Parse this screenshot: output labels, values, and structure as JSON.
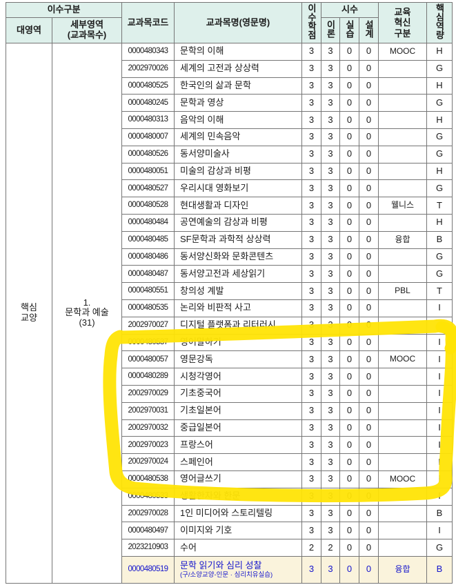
{
  "header": {
    "group": "이수구분",
    "main_area": "대영역",
    "sub_area": "세부영역\n(교과목수)",
    "code": "교과목코드",
    "name": "교과목명(영문명)",
    "credits": "이수학점",
    "hours": "시수",
    "theory": "이론",
    "practice": "실습",
    "design": "설계",
    "innovation": "교육혁신구분",
    "competency": "핵심역량"
  },
  "left": {
    "main_area": "핵심\n교양",
    "sub_area": "1.\n문학과 예술\n(31)"
  },
  "rows": [
    {
      "code": "0000480343",
      "name": "문학의 이해",
      "credit": 3,
      "theory": 3,
      "practice": 0,
      "design": 0,
      "innovation": "MOOC",
      "competency": "H"
    },
    {
      "code": "2002970026",
      "name": "세계의 고전과 상상력",
      "credit": 3,
      "theory": 3,
      "practice": 0,
      "design": 0,
      "innovation": "",
      "competency": "G"
    },
    {
      "code": "0000480525",
      "name": "한국인의 삶과 문학",
      "credit": 3,
      "theory": 3,
      "practice": 0,
      "design": 0,
      "innovation": "",
      "competency": "H"
    },
    {
      "code": "0000480245",
      "name": "문학과 영상",
      "credit": 3,
      "theory": 3,
      "practice": 0,
      "design": 0,
      "innovation": "",
      "competency": "G"
    },
    {
      "code": "0000480313",
      "name": "음악의 이해",
      "credit": 3,
      "theory": 3,
      "practice": 0,
      "design": 0,
      "innovation": "",
      "competency": "H"
    },
    {
      "code": "0000480007",
      "name": "세계의 민속음악",
      "credit": 3,
      "theory": 3,
      "practice": 0,
      "design": 0,
      "innovation": "",
      "competency": "G"
    },
    {
      "code": "0000480526",
      "name": "동서양미술사",
      "credit": 3,
      "theory": 3,
      "practice": 0,
      "design": 0,
      "innovation": "",
      "competency": "G"
    },
    {
      "code": "0000480051",
      "name": "미술의 감상과 비평",
      "credit": 3,
      "theory": 3,
      "practice": 0,
      "design": 0,
      "innovation": "",
      "competency": "H"
    },
    {
      "code": "0000480527",
      "name": "우리시대 영화보기",
      "credit": 3,
      "theory": 3,
      "practice": 0,
      "design": 0,
      "innovation": "",
      "competency": "G"
    },
    {
      "code": "0000480528",
      "name": "현대생활과 디자인",
      "credit": 3,
      "theory": 3,
      "practice": 0,
      "design": 0,
      "innovation": "웰니스",
      "competency": "T"
    },
    {
      "code": "0000480484",
      "name": "공연예술의 감상과 비평",
      "credit": 3,
      "theory": 3,
      "practice": 0,
      "design": 0,
      "innovation": "",
      "competency": "H"
    },
    {
      "code": "0000480485",
      "name": "SF문학과 과학적 상상력",
      "credit": 3,
      "theory": 3,
      "practice": 0,
      "design": 0,
      "innovation": "융합",
      "competency": "B"
    },
    {
      "code": "0000480486",
      "name": "동서양신화와 문화콘텐츠",
      "credit": 3,
      "theory": 3,
      "practice": 0,
      "design": 0,
      "innovation": "",
      "competency": "G"
    },
    {
      "code": "0000480487",
      "name": "동서양고전과 세상읽기",
      "credit": 3,
      "theory": 3,
      "practice": 0,
      "design": 0,
      "innovation": "",
      "competency": "G"
    },
    {
      "code": "0000480551",
      "name": "창의성 계발",
      "credit": 3,
      "theory": 3,
      "practice": 0,
      "design": 0,
      "innovation": "PBL",
      "competency": "T"
    },
    {
      "code": "0000480535",
      "name": "논리와 비판적 사고",
      "credit": 3,
      "theory": 3,
      "practice": 0,
      "design": 0,
      "innovation": "",
      "competency": "I"
    },
    {
      "code": "2002970027",
      "name": "디지털 플랫폼과 리터러시",
      "credit": 3,
      "theory": 3,
      "practice": 0,
      "design": 0,
      "innovation": "",
      "competency": "I"
    },
    {
      "code": "0000480537",
      "name": "영어말하기",
      "credit": 3,
      "theory": 3,
      "practice": 0,
      "design": 0,
      "innovation": "",
      "competency": "I"
    },
    {
      "code": "0000480057",
      "name": "영문강독",
      "credit": 3,
      "theory": 3,
      "practice": 0,
      "design": 0,
      "innovation": "MOOC",
      "competency": "I"
    },
    {
      "code": "0000480289",
      "name": "시청각영어",
      "credit": 3,
      "theory": 3,
      "practice": 0,
      "design": 0,
      "innovation": "",
      "competency": "I"
    },
    {
      "code": "2002970029",
      "name": "기초중국어",
      "credit": 3,
      "theory": 3,
      "practice": 0,
      "design": 0,
      "innovation": "",
      "competency": "I"
    },
    {
      "code": "2002970031",
      "name": "기초일본어",
      "credit": 3,
      "theory": 3,
      "practice": 0,
      "design": 0,
      "innovation": "",
      "competency": "I"
    },
    {
      "code": "2002970032",
      "name": "중급일본어",
      "credit": 3,
      "theory": 3,
      "practice": 0,
      "design": 0,
      "innovation": "",
      "competency": "I"
    },
    {
      "code": "2002970023",
      "name": "프랑스어",
      "credit": 3,
      "theory": 3,
      "practice": 0,
      "design": 0,
      "innovation": "",
      "competency": "I"
    },
    {
      "code": "2002970024",
      "name": "스페인어",
      "credit": 3,
      "theory": 3,
      "practice": 0,
      "design": 0,
      "innovation": "",
      "competency": "I"
    },
    {
      "code": "0000480538",
      "name": "영어글쓰기",
      "credit": 3,
      "theory": 3,
      "practice": 0,
      "design": 0,
      "innovation": "MOOC",
      "competency": "I"
    },
    {
      "code": "0000480533",
      "name": "생활한자와 한문",
      "credit": 3,
      "theory": 3,
      "practice": 0,
      "design": 0,
      "innovation": "",
      "competency": "I"
    },
    {
      "code": "2002970028",
      "name": "1인 미디어와 스토리텔링",
      "credit": 3,
      "theory": 3,
      "practice": 0,
      "design": 0,
      "innovation": "",
      "competency": "B"
    },
    {
      "code": "0000480497",
      "name": "이미지와 기호",
      "credit": 3,
      "theory": 3,
      "practice": 0,
      "design": 0,
      "innovation": "",
      "competency": "I"
    },
    {
      "code": "2023210903",
      "name": "수어",
      "credit": 2,
      "theory": 2,
      "practice": 0,
      "design": 0,
      "innovation": "",
      "competency": "G"
    },
    {
      "code": "0000480519",
      "name": "문학 읽기와 심리 성찰",
      "note": "(구/소양교양-인문 · 심리치유실습)",
      "credit": 3,
      "theory": 3,
      "practice": 0,
      "design": 0,
      "innovation": "융합",
      "competency": "B",
      "emphasis": true
    }
  ],
  "annotation": {
    "type": "hand-drawn highlighter loop",
    "marks_rows_from": "영어말하기",
    "marks_rows_to": "영어글쓰기"
  },
  "colors": {
    "highlighter": "#FFE405",
    "header-bg": "#DEF0EB",
    "grid": "#757575",
    "ink": "#1A1A1A",
    "blue": "#1414CC",
    "beige": "#FAF3DC",
    "page-bg": "#FFFFFF"
  }
}
